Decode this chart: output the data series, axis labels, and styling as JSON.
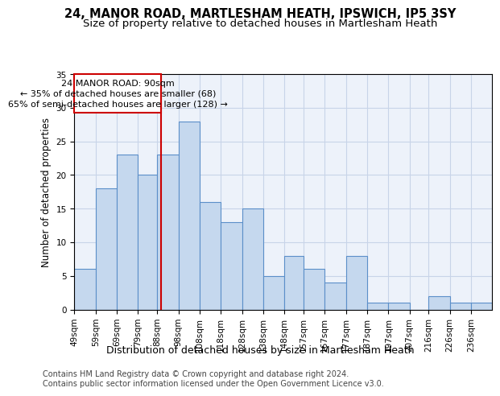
{
  "title1": "24, MANOR ROAD, MARTLESHAM HEATH, IPSWICH, IP5 3SY",
  "title2": "Size of property relative to detached houses in Martlesham Heath",
  "xlabel": "Distribution of detached houses by size in Martlesham Heath",
  "ylabel": "Number of detached properties",
  "footnote1": "Contains HM Land Registry data © Crown copyright and database right 2024.",
  "footnote2": "Contains public sector information licensed under the Open Government Licence v3.0.",
  "annotation_title": "24 MANOR ROAD: 90sqm",
  "annotation_line1": "← 35% of detached houses are smaller (68)",
  "annotation_line2": "65% of semi-detached houses are larger (128) →",
  "property_size": 90,
  "bar_color": "#c5d8ee",
  "bar_edge_color": "#5b8fc9",
  "vline_color": "#cc0000",
  "annotation_box_color": "#cc0000",
  "bins": [
    49,
    59,
    69,
    79,
    88,
    98,
    108,
    118,
    128,
    138,
    148,
    157,
    167,
    177,
    187,
    197,
    207,
    216,
    226,
    236,
    246
  ],
  "counts": [
    6,
    18,
    23,
    20,
    23,
    28,
    16,
    13,
    15,
    5,
    8,
    6,
    4,
    8,
    1,
    1,
    0,
    2,
    1,
    1
  ],
  "ylim": [
    0,
    35
  ],
  "yticks": [
    0,
    5,
    10,
    15,
    20,
    25,
    30,
    35
  ],
  "background_color": "#edf2fa",
  "grid_color": "#c8d4e8",
  "title1_fontsize": 10.5,
  "title2_fontsize": 9.5,
  "xlabel_fontsize": 9,
  "ylabel_fontsize": 8.5,
  "tick_fontsize": 7.5,
  "footnote_fontsize": 7,
  "annotation_fontsize": 8
}
